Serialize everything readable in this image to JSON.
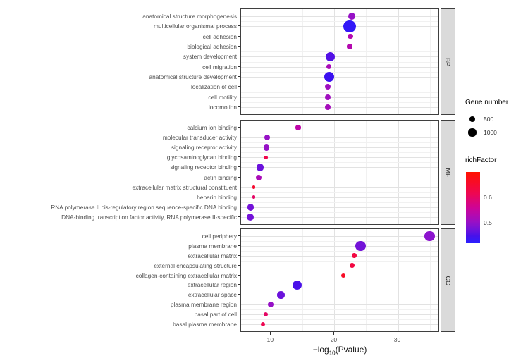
{
  "figure": {
    "axis_title": {
      "prefix": "−log",
      "sub": "10",
      "suffix": "(Pvalue)"
    },
    "x_ticks": [
      10,
      20,
      30
    ],
    "x_grid_minor": [
      15,
      25,
      35
    ],
    "colors": {
      "panel_border": "#3f3f3f",
      "strip_fill": "#dadada",
      "grid_major": "#e2e2e2",
      "grid_minor": "#f1f1f1",
      "axis_text": "#4d4d4d",
      "legend_dot": "#000000"
    }
  },
  "legend": {
    "size": {
      "title": "Gene number",
      "entries": [
        {
          "label": "500",
          "value": 500
        },
        {
          "label": "1000",
          "value": 1000
        }
      ]
    },
    "color": {
      "title": "richFactor",
      "ticks": [
        {
          "label": "0.6",
          "value": 0.6
        },
        {
          "label": "0.5",
          "value": 0.5
        }
      ],
      "domain_top": 0.7,
      "domain_bottom": 0.419
    }
  },
  "chart_data": {
    "type": "scatter",
    "subtype": "bubble-facet",
    "xlabel": "-log10(Pvalue)",
    "x_range": [
      5.3,
      36.6
    ],
    "color_stops": [
      {
        "v": 0.42,
        "c": [
          42,
          32,
          255
        ]
      },
      {
        "v": 0.44,
        "c": [
          58,
          16,
          240
        ]
      },
      {
        "v": 0.49,
        "c": [
          140,
          20,
          206
        ]
      },
      {
        "v": 0.55,
        "c": [
          200,
          4,
          160
        ]
      },
      {
        "v": 0.62,
        "c": [
          241,
          7,
          76
        ]
      },
      {
        "v": 0.7,
        "c": [
          255,
          18,
          0
        ]
      }
    ],
    "facets": [
      {
        "label": "BP",
        "points": [
          {
            "term": "anatomical structure morphogenesis",
            "x": 22.7,
            "gene_number": 750,
            "rich_factor": 0.5
          },
          {
            "term": "multicellular organismal process",
            "x": 22.4,
            "gene_number": 2300,
            "rich_factor": 0.43
          },
          {
            "term": "cell adhesion",
            "x": 22.5,
            "gene_number": 420,
            "rich_factor": 0.53
          },
          {
            "term": "biological adhesion",
            "x": 22.4,
            "gene_number": 420,
            "rich_factor": 0.53
          },
          {
            "term": "system development",
            "x": 19.3,
            "gene_number": 1300,
            "rich_factor": 0.455
          },
          {
            "term": "cell migration",
            "x": 19.15,
            "gene_number": 420,
            "rich_factor": 0.52
          },
          {
            "term": "anatomical structure development",
            "x": 19.15,
            "gene_number": 1500,
            "rich_factor": 0.44
          },
          {
            "term": "localization of cell",
            "x": 19.0,
            "gene_number": 490,
            "rich_factor": 0.51
          },
          {
            "term": "cell motility",
            "x": 19.0,
            "gene_number": 490,
            "rich_factor": 0.51
          },
          {
            "term": "locomotion",
            "x": 19.0,
            "gene_number": 490,
            "rich_factor": 0.515
          }
        ]
      },
      {
        "label": "MF",
        "points": [
          {
            "term": "calcium ion binding",
            "x": 14.3,
            "gene_number": 420,
            "rich_factor": 0.54
          },
          {
            "term": "molecular transducer activity",
            "x": 9.4,
            "gene_number": 570,
            "rich_factor": 0.5
          },
          {
            "term": "signaling receptor activity",
            "x": 9.3,
            "gene_number": 570,
            "rich_factor": 0.5
          },
          {
            "term": "glycosaminoglycan binding",
            "x": 9.2,
            "gene_number": 225,
            "rich_factor": 0.62
          },
          {
            "term": "signaling receptor binding",
            "x": 8.3,
            "gene_number": 870,
            "rich_factor": 0.47
          },
          {
            "term": "actin binding",
            "x": 8.1,
            "gene_number": 490,
            "rich_factor": 0.52
          },
          {
            "term": "extracellular matrix structural constituent",
            "x": 7.3,
            "gene_number": 165,
            "rich_factor": 0.65
          },
          {
            "term": "heparin binding",
            "x": 7.3,
            "gene_number": 165,
            "rich_factor": 0.6
          },
          {
            "term": "RNA polymerase II cis-regulatory region sequence-specific DNA binding",
            "x": 6.8,
            "gene_number": 680,
            "rich_factor": 0.475
          },
          {
            "term": "DNA-binding transcription factor activity, RNA polymerase II-specific",
            "x": 6.7,
            "gene_number": 770,
            "rich_factor": 0.475
          }
        ]
      },
      {
        "label": "CC",
        "points": [
          {
            "term": "cell periphery",
            "x": 35.0,
            "gene_number": 1650,
            "rich_factor": 0.49
          },
          {
            "term": "plasma membrane",
            "x": 24.1,
            "gene_number": 1650,
            "rich_factor": 0.475
          },
          {
            "term": "extracellular matrix",
            "x": 23.1,
            "gene_number": 335,
            "rich_factor": 0.63
          },
          {
            "term": "external encapsulating structure",
            "x": 22.8,
            "gene_number": 335,
            "rich_factor": 0.63
          },
          {
            "term": "collagen-containing extracellular matrix",
            "x": 21.4,
            "gene_number": 280,
            "rich_factor": 0.66
          },
          {
            "term": "extracellular region",
            "x": 14.1,
            "gene_number": 1400,
            "rich_factor": 0.45
          },
          {
            "term": "extracellular space",
            "x": 11.6,
            "gene_number": 870,
            "rich_factor": 0.47
          },
          {
            "term": "plasma membrane region",
            "x": 10.0,
            "gene_number": 490,
            "rich_factor": 0.5
          },
          {
            "term": "basal part of cell",
            "x": 9.2,
            "gene_number": 280,
            "rich_factor": 0.6
          },
          {
            "term": "basal plasma membrane",
            "x": 8.7,
            "gene_number": 280,
            "rich_factor": 0.615
          }
        ]
      }
    ]
  }
}
